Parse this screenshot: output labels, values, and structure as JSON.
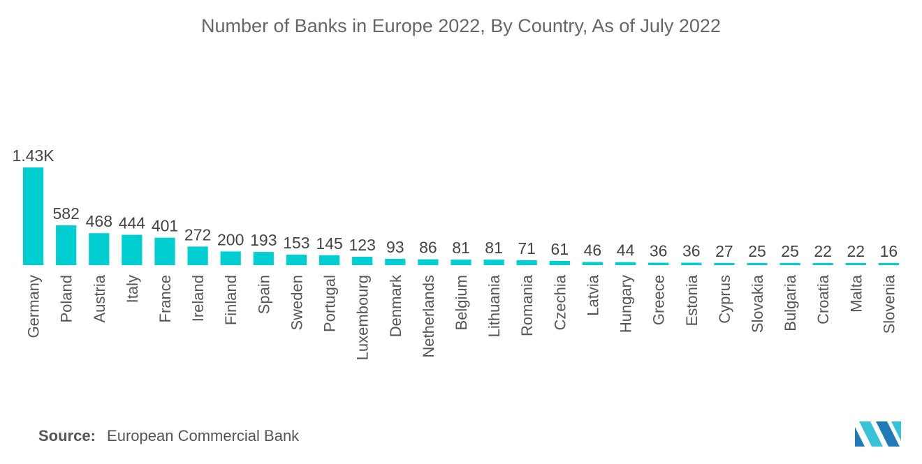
{
  "chart_data": {
    "type": "bar",
    "title": "Number of Banks in Europe 2022, By Country, As of July 2022",
    "categories": [
      "Germany",
      "Poland",
      "Austria",
      "Italy",
      "France",
      "Ireland",
      "Finland",
      "Spain",
      "Sweden",
      "Portugal",
      "Luxembourg",
      "Denmark",
      "Netherlands",
      "Belgium",
      "Lithuania",
      "Romania",
      "Czechia",
      "Latvia",
      "Hungary",
      "Greece",
      "Estonia",
      "Cyprus",
      "Slovakia",
      "Bulgaria",
      "Croatia",
      "Malta",
      "Slovenia"
    ],
    "values": [
      1430,
      582,
      468,
      444,
      401,
      272,
      200,
      193,
      153,
      145,
      123,
      93,
      86,
      81,
      81,
      71,
      61,
      46,
      44,
      36,
      36,
      27,
      25,
      25,
      22,
      22,
      16
    ],
    "labels": [
      "1.43K",
      "582",
      "468",
      "444",
      "401",
      "272",
      "200",
      "193",
      "153",
      "145",
      "123",
      "93",
      "86",
      "81",
      "81",
      "71",
      "61",
      "46",
      "44",
      "36",
      "36",
      "27",
      "25",
      "25",
      "22",
      "22",
      "16"
    ],
    "xlabel": "",
    "ylabel": "",
    "bar_color": "#00CED1",
    "grid": false,
    "legend": "none"
  },
  "source": {
    "key": "Source:",
    "value": "European Commercial Bank"
  },
  "logo": {
    "name": "mordor-intelligence-logo",
    "colors": [
      "#1E7BB8",
      "#36C3D6"
    ]
  }
}
